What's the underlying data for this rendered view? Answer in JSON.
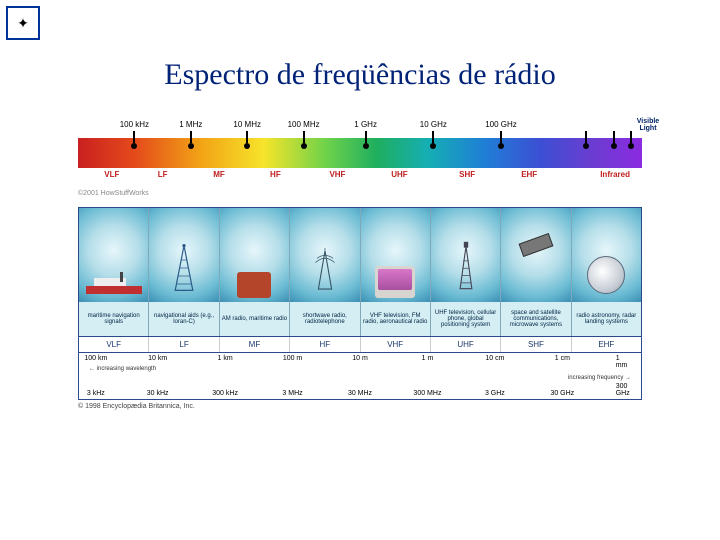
{
  "corner_glyph": "✦",
  "title": "Espectro de freqüências de rádio",
  "spectrum": {
    "freq_labels": [
      {
        "text": "100 kHz",
        "pct": 10
      },
      {
        "text": "1 MHz",
        "pct": 20
      },
      {
        "text": "10 MHz",
        "pct": 30
      },
      {
        "text": "100 MHz",
        "pct": 40
      },
      {
        "text": "1 GHz",
        "pct": 51
      },
      {
        "text": "10 GHz",
        "pct": 63
      },
      {
        "text": "100 GHz",
        "pct": 75
      }
    ],
    "visible_light": "Visible\nLight",
    "bands": [
      {
        "text": "VLF",
        "pct": 6
      },
      {
        "text": "LF",
        "pct": 15
      },
      {
        "text": "MF",
        "pct": 25
      },
      {
        "text": "HF",
        "pct": 35
      },
      {
        "text": "VHF",
        "pct": 46
      },
      {
        "text": "UHF",
        "pct": 57
      },
      {
        "text": "SHF",
        "pct": 69
      },
      {
        "text": "EHF",
        "pct": 80
      }
    ],
    "dot_pcts": [
      10,
      20,
      30,
      40,
      51,
      63,
      75,
      90,
      95,
      98
    ],
    "infrared": "Infrared",
    "copyright": "©2001 HowStuffWorks",
    "gradient_stops": [
      "#c92020",
      "#e44a1b",
      "#f2a516",
      "#f6e42a",
      "#6ed24a",
      "#1fae5f",
      "#15aeb3",
      "#1f7fd6",
      "#3c4fd4",
      "#6a3dd0",
      "#8b2be1"
    ]
  },
  "britannica": {
    "panel_bg": "#d4eef3",
    "border": "#2a4a88",
    "apps": [
      {
        "label": "maritime navigation signals",
        "band": "VLF",
        "icon": "ship"
      },
      {
        "label": "navigational aids (e.g., loran-C)",
        "band": "LF",
        "icon": "tower"
      },
      {
        "label": "AM radio, maritime radio",
        "band": "MF",
        "icon": "radio"
      },
      {
        "label": "shortwave radio, radiotelephone",
        "band": "HF",
        "icon": "tower2"
      },
      {
        "label": "VHF television, FM radio, aeronautical radio",
        "band": "VHF",
        "icon": "tv"
      },
      {
        "label": "UHF television, cellular phone, global positioning system",
        "band": "UHF",
        "icon": "celltower"
      },
      {
        "label": "space and satellite communications, microwave systems",
        "band": "SHF",
        "icon": "satellite"
      },
      {
        "label": "radio astronomy, radar landing systems",
        "band": "EHF",
        "icon": "dish"
      }
    ],
    "wavelength_labels": [
      {
        "text": "100 km",
        "pct": 3
      },
      {
        "text": "10 km",
        "pct": 14
      },
      {
        "text": "1 km",
        "pct": 26
      },
      {
        "text": "100 m",
        "pct": 38
      },
      {
        "text": "10 m",
        "pct": 50
      },
      {
        "text": "1 m",
        "pct": 62
      },
      {
        "text": "10 cm",
        "pct": 74
      },
      {
        "text": "1 cm",
        "pct": 86
      },
      {
        "text": "1 mm",
        "pct": 97
      }
    ],
    "frequency_labels": [
      {
        "text": "3 kHz",
        "pct": 3
      },
      {
        "text": "30 kHz",
        "pct": 14
      },
      {
        "text": "300 kHz",
        "pct": 26
      },
      {
        "text": "3 MHz",
        "pct": 38
      },
      {
        "text": "30 MHz",
        "pct": 50
      },
      {
        "text": "300 MHz",
        "pct": 62
      },
      {
        "text": "3 GHz",
        "pct": 74
      },
      {
        "text": "30 GHz",
        "pct": 86
      },
      {
        "text": "300 GHz",
        "pct": 97
      }
    ],
    "arrow_left_label": "increasing wavelength",
    "arrow_right_label": "increasing frequency",
    "copyright": "© 1998 Encyclopædia Britannica, Inc."
  }
}
